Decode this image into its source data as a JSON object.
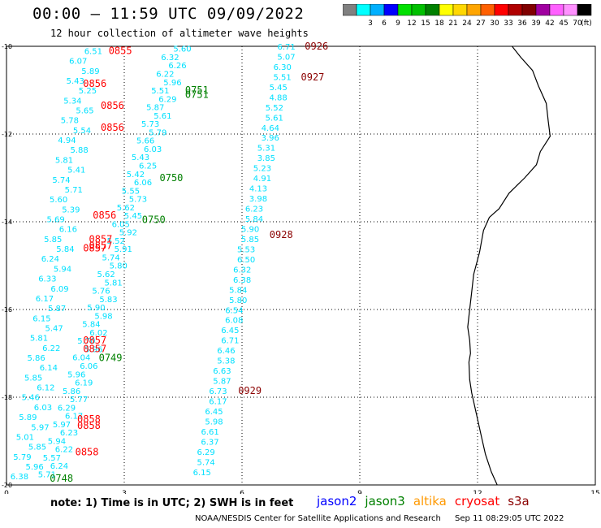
{
  "header": {
    "title": "00:00 — 11:59 UTC 09/09/2022",
    "subtitle": "12 hour collection of altimeter wave heights"
  },
  "colorbar": {
    "labels": [
      "3",
      "6",
      "9",
      "12",
      "15",
      "18",
      "21",
      "24",
      "27",
      "30",
      "33",
      "36",
      "39",
      "42",
      "45",
      "70"
    ],
    "colors": [
      "#808080",
      "#00ffff",
      "#00b0ff",
      "#0000ff",
      "#00e000",
      "#00c000",
      "#008000",
      "#ffff00",
      "#ffd700",
      "#ffa500",
      "#ff6000",
      "#ff0000",
      "#b00000",
      "#800000",
      "#a000a0",
      "#ff60ff",
      "#ff90ff",
      "#000000"
    ],
    "unit": "(ft)"
  },
  "axes": {
    "x_ticks": [
      "0",
      "3",
      "6",
      "9",
      "12",
      "15"
    ],
    "y_ticks": [
      "-10",
      "-12",
      "-14",
      "-16",
      "-18",
      "-20"
    ],
    "lon_range": [
      0,
      15
    ],
    "lat_range": [
      -20,
      -10
    ],
    "grid": true
  },
  "wave_color": "#00e0ff",
  "track_a": {
    "values": [
      "6.51",
      "6.07",
      "5.89",
      "5.43",
      "5.25",
      "5.34",
      "5.65",
      "5.78",
      "5.54",
      "4.94",
      "5.88",
      "5.81",
      "5.41",
      "5.74",
      "5.71",
      "5.60",
      "5.39",
      "5.69",
      "6.16",
      "5.85",
      "5.84",
      "6.24",
      "5.94",
      "6.33",
      "6.09",
      "6.17",
      "5.87",
      "6.15",
      "5.47",
      "5.81",
      "6.22",
      "5.86",
      "6.14",
      "5.85",
      "6.12",
      "5.46",
      "6.03",
      "5.89",
      "5.97",
      "5.01",
      "5.85",
      "5.79",
      "5.96",
      "6.38"
    ]
  },
  "track_b": {
    "values": [
      "5.60",
      "6.32",
      "6.26",
      "6.22",
      "5.96",
      "5.51",
      "6.29",
      "5.87",
      "5.61",
      "5.73",
      "5.79",
      "5.66",
      "6.03",
      "5.43",
      "6.25",
      "5.42",
      "6.06",
      "5.55",
      "5.73",
      "5.62",
      "5.45",
      "6.05",
      "5.92",
      "5.52",
      "5.91",
      "5.74",
      "5.80",
      "5.62",
      "5.81",
      "5.76",
      "5.83",
      "5.90",
      "5.98",
      "5.84",
      "6.02",
      "5.70",
      "5.96",
      "6.04",
      "6.06",
      "5.96",
      "6.19",
      "5.86",
      "5.77",
      "6.29",
      "6.17",
      "5.97",
      "6.23",
      "5.94",
      "6.22",
      "5.57",
      "6.24",
      "5.71"
    ]
  },
  "track_c": {
    "values": [
      "6.71",
      "5.07",
      "6.30",
      "5.51",
      "5.45",
      "4.88",
      "5.52",
      "5.61",
      "4.64",
      "3.96",
      "5.31",
      "3.85",
      "5.23",
      "4.91",
      "4.13",
      "3.98",
      "6.23",
      "5.84",
      "5.90",
      "5.85",
      "5.53",
      "6.50",
      "6.32",
      "6.38",
      "5.84",
      "5.80",
      "6.54",
      "6.08",
      "6.45",
      "6.71",
      "6.46",
      "5.38",
      "6.63",
      "5.87",
      "6.73",
      "6.17",
      "6.45",
      "5.98",
      "6.61",
      "6.37",
      "6.29",
      "5.74",
      "6.15"
    ]
  },
  "time_labels": [
    {
      "text": "0855",
      "sat": "cryosat"
    },
    {
      "text": "0856",
      "sat": "cryosat"
    },
    {
      "text": "0856",
      "sat": "cryosat"
    },
    {
      "text": "0856",
      "sat": "cryosat"
    },
    {
      "text": "0856",
      "sat": "cryosat"
    },
    {
      "text": "0857",
      "sat": "cryosat"
    },
    {
      "text": "0857",
      "sat": "cryosat"
    },
    {
      "text": "0857",
      "sat": "cryosat"
    },
    {
      "text": "0857",
      "sat": "cryosat"
    },
    {
      "text": "0857",
      "sat": "cryosat"
    },
    {
      "text": "0858",
      "sat": "cryosat"
    },
    {
      "text": "0858",
      "sat": "cryosat"
    },
    {
      "text": "0858",
      "sat": "cryosat"
    },
    {
      "text": "0751",
      "sat": "jason3"
    },
    {
      "text": "0751",
      "sat": "jason3"
    },
    {
      "text": "0750",
      "sat": "jason3"
    },
    {
      "text": "0750",
      "sat": "jason3"
    },
    {
      "text": "0749",
      "sat": "jason3"
    },
    {
      "text": "0748",
      "sat": "jason3"
    },
    {
      "text": "0926",
      "sat": "s3a"
    },
    {
      "text": "0927",
      "sat": "s3a"
    },
    {
      "text": "0928",
      "sat": "s3a"
    },
    {
      "text": "0929",
      "sat": "s3a"
    }
  ],
  "sat_colors": {
    "jason2": "#0000ff",
    "jason3": "#008000",
    "altika": "#ff9900",
    "cryosat": "#ff0000",
    "s3a": "#8b0000"
  },
  "footer": {
    "note": "note:  1) Time is in UTC;  2) SWH is in feet",
    "satellites": [
      {
        "name": "jason2",
        "color": "#0000ff"
      },
      {
        "name": "jason3",
        "color": "#008000"
      },
      {
        "name": "altika",
        "color": "#ff9900"
      },
      {
        "name": "cryosat",
        "color": "#ff0000"
      },
      {
        "name": "s3a",
        "color": "#8b0000"
      }
    ],
    "credit": "NOAA/NESDIS Center for Satellite Applications and Research",
    "timestamp": "Sep 11 08:29:05 UTC 2022"
  }
}
